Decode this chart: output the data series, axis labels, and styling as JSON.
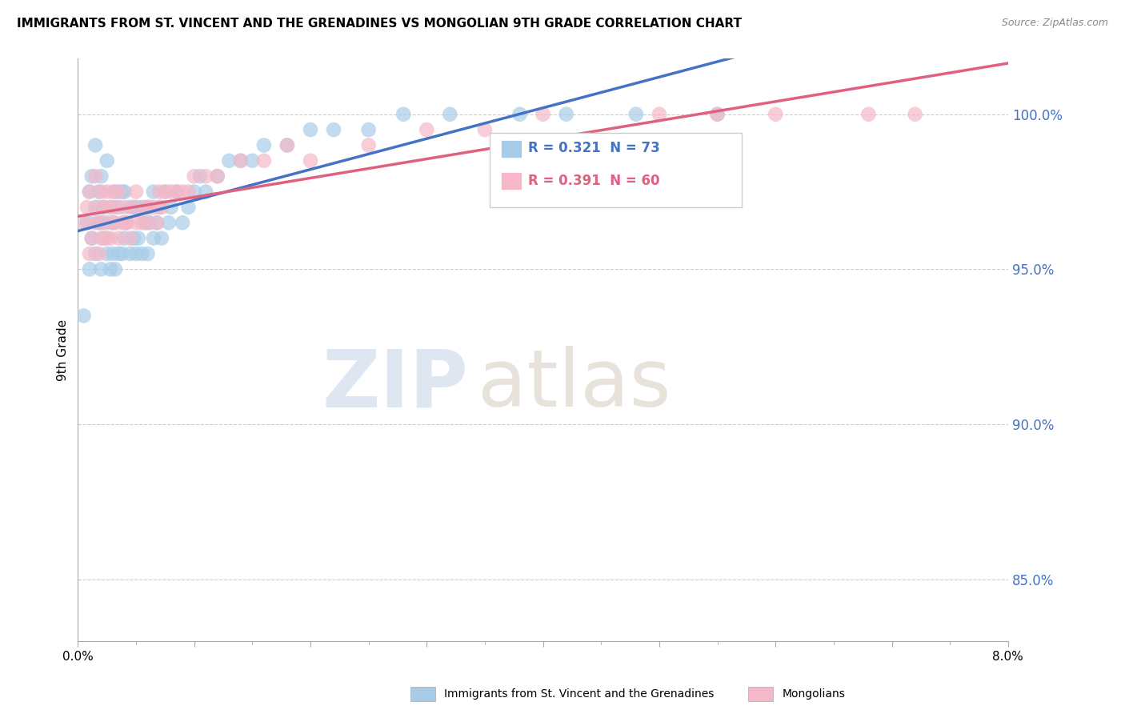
{
  "title": "IMMIGRANTS FROM ST. VINCENT AND THE GRENADINES VS MONGOLIAN 9TH GRADE CORRELATION CHART",
  "source": "Source: ZipAtlas.com",
  "ylabel": "9th Grade",
  "xlim": [
    0.0,
    8.0
  ],
  "ylim": [
    83.0,
    101.8
  ],
  "yticks": [
    85.0,
    90.0,
    95.0,
    100.0
  ],
  "ytick_labels": [
    "85.0%",
    "90.0%",
    "95.0%",
    "100.0%"
  ],
  "blue_label": "Immigrants from St. Vincent and the Grenadines",
  "pink_label": "Mongolians",
  "blue_R": 0.321,
  "blue_N": 73,
  "pink_R": 0.391,
  "pink_N": 60,
  "blue_color": "#a8cce8",
  "pink_color": "#f4b8c8",
  "blue_line_color": "#4472c4",
  "pink_line_color": "#e06080",
  "watermark_zip": "ZIP",
  "watermark_atlas": "atlas",
  "blue_scatter_x": [
    0.05,
    0.08,
    0.1,
    0.1,
    0.12,
    0.12,
    0.15,
    0.15,
    0.15,
    0.18,
    0.18,
    0.2,
    0.2,
    0.2,
    0.22,
    0.22,
    0.25,
    0.25,
    0.25,
    0.28,
    0.28,
    0.3,
    0.3,
    0.32,
    0.32,
    0.35,
    0.35,
    0.38,
    0.38,
    0.4,
    0.4,
    0.42,
    0.45,
    0.45,
    0.48,
    0.5,
    0.5,
    0.52,
    0.55,
    0.55,
    0.58,
    0.6,
    0.6,
    0.62,
    0.65,
    0.65,
    0.68,
    0.7,
    0.72,
    0.75,
    0.78,
    0.8,
    0.85,
    0.9,
    0.95,
    1.0,
    1.05,
    1.1,
    1.2,
    1.3,
    1.4,
    1.5,
    1.6,
    1.8,
    2.0,
    2.2,
    2.5,
    2.8,
    3.2,
    3.8,
    4.2,
    4.8,
    5.5
  ],
  "blue_scatter_y": [
    93.5,
    96.5,
    95.0,
    97.5,
    96.0,
    98.0,
    95.5,
    97.0,
    99.0,
    96.5,
    97.5,
    95.0,
    96.5,
    98.0,
    96.0,
    97.0,
    95.5,
    96.5,
    98.5,
    95.0,
    97.0,
    95.5,
    96.5,
    95.0,
    97.5,
    95.5,
    97.0,
    95.5,
    97.5,
    96.0,
    97.5,
    96.5,
    95.5,
    97.0,
    96.0,
    95.5,
    97.0,
    96.0,
    95.5,
    97.0,
    96.5,
    95.5,
    97.0,
    96.5,
    96.0,
    97.5,
    96.5,
    97.0,
    96.0,
    97.5,
    96.5,
    97.0,
    97.5,
    96.5,
    97.0,
    97.5,
    98.0,
    97.5,
    98.0,
    98.5,
    98.5,
    98.5,
    99.0,
    99.0,
    99.5,
    99.5,
    99.5,
    100.0,
    100.0,
    100.0,
    100.0,
    100.0,
    100.0
  ],
  "pink_scatter_x": [
    0.05,
    0.08,
    0.1,
    0.1,
    0.12,
    0.15,
    0.15,
    0.18,
    0.18,
    0.2,
    0.2,
    0.22,
    0.22,
    0.25,
    0.25,
    0.28,
    0.28,
    0.3,
    0.3,
    0.32,
    0.32,
    0.35,
    0.35,
    0.38,
    0.4,
    0.4,
    0.42,
    0.45,
    0.48,
    0.5,
    0.5,
    0.55,
    0.58,
    0.6,
    0.62,
    0.65,
    0.68,
    0.7,
    0.72,
    0.75,
    0.8,
    0.85,
    0.9,
    0.95,
    1.0,
    1.1,
    1.2,
    1.4,
    1.6,
    1.8,
    2.0,
    2.5,
    3.0,
    3.5,
    4.0,
    5.0,
    5.5,
    6.0,
    6.8,
    7.2
  ],
  "pink_scatter_y": [
    96.5,
    97.0,
    95.5,
    97.5,
    96.0,
    96.5,
    98.0,
    95.5,
    97.0,
    96.0,
    97.5,
    96.5,
    97.0,
    96.0,
    97.5,
    96.0,
    97.0,
    96.5,
    97.5,
    96.5,
    97.0,
    96.0,
    97.5,
    96.5,
    96.5,
    97.0,
    96.5,
    96.0,
    97.0,
    96.5,
    97.5,
    96.5,
    97.0,
    96.5,
    97.0,
    97.0,
    96.5,
    97.5,
    97.0,
    97.5,
    97.5,
    97.5,
    97.5,
    97.5,
    98.0,
    98.0,
    98.0,
    98.5,
    98.5,
    99.0,
    98.5,
    99.0,
    99.5,
    99.5,
    100.0,
    100.0,
    100.0,
    100.0,
    100.0,
    100.0
  ]
}
